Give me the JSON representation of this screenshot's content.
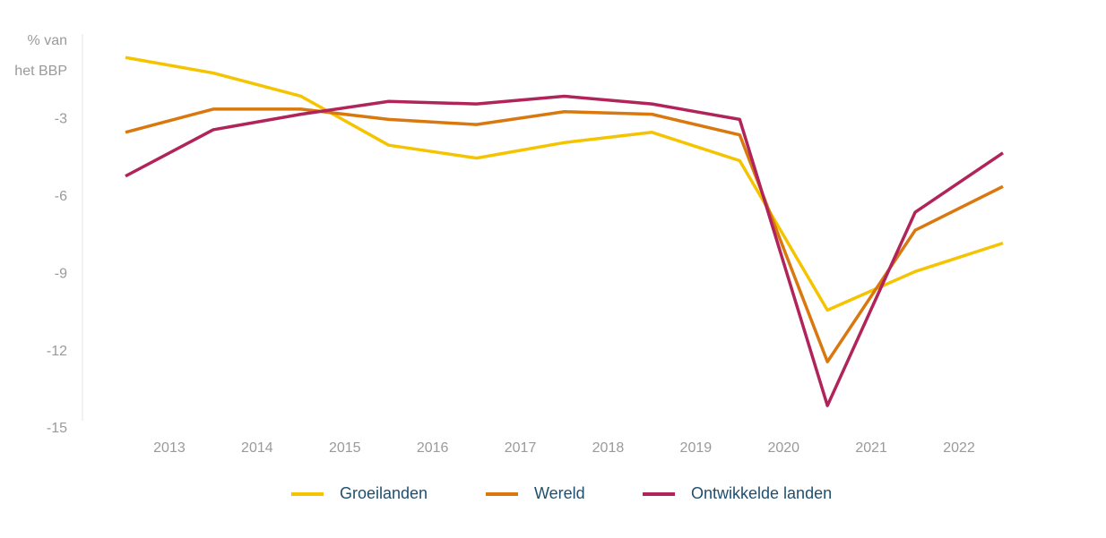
{
  "chart_data": {
    "type": "line",
    "y_label": [
      "% van",
      "het BBP"
    ],
    "x": [
      2012.5,
      2013.5,
      2014.5,
      2015.5,
      2016.5,
      2017.5,
      2018.5,
      2019.5,
      2020.5,
      2021.5,
      2022.5
    ],
    "xlim": [
      2012.5,
      2022.5
    ],
    "xticks": [
      2013,
      2014,
      2015,
      2016,
      2017,
      2018,
      2019,
      2020,
      2021,
      2022
    ],
    "ylim": [
      -15,
      0
    ],
    "yticks": [
      -3,
      -6,
      -9,
      -12,
      -15
    ],
    "legend": "bottom",
    "series": [
      {
        "name": "Groeilanden",
        "color": "#f5c400",
        "values": [
          -0.6,
          -1.2,
          -2.1,
          -4.0,
          -4.5,
          -3.9,
          -3.5,
          -4.6,
          -10.4,
          -8.9,
          -7.8
        ]
      },
      {
        "name": "Wereld",
        "color": "#d9780e",
        "values": [
          -3.5,
          -2.6,
          -2.6,
          -3.0,
          -3.2,
          -2.7,
          -2.8,
          -3.6,
          -12.4,
          -7.3,
          -5.6
        ]
      },
      {
        "name": "Ontwikkelde landen",
        "color": "#b0245a",
        "values": [
          -5.2,
          -3.4,
          -2.8,
          -2.3,
          -2.4,
          -2.1,
          -2.4,
          -3.0,
          -14.1,
          -6.6,
          -4.3
        ]
      }
    ]
  }
}
